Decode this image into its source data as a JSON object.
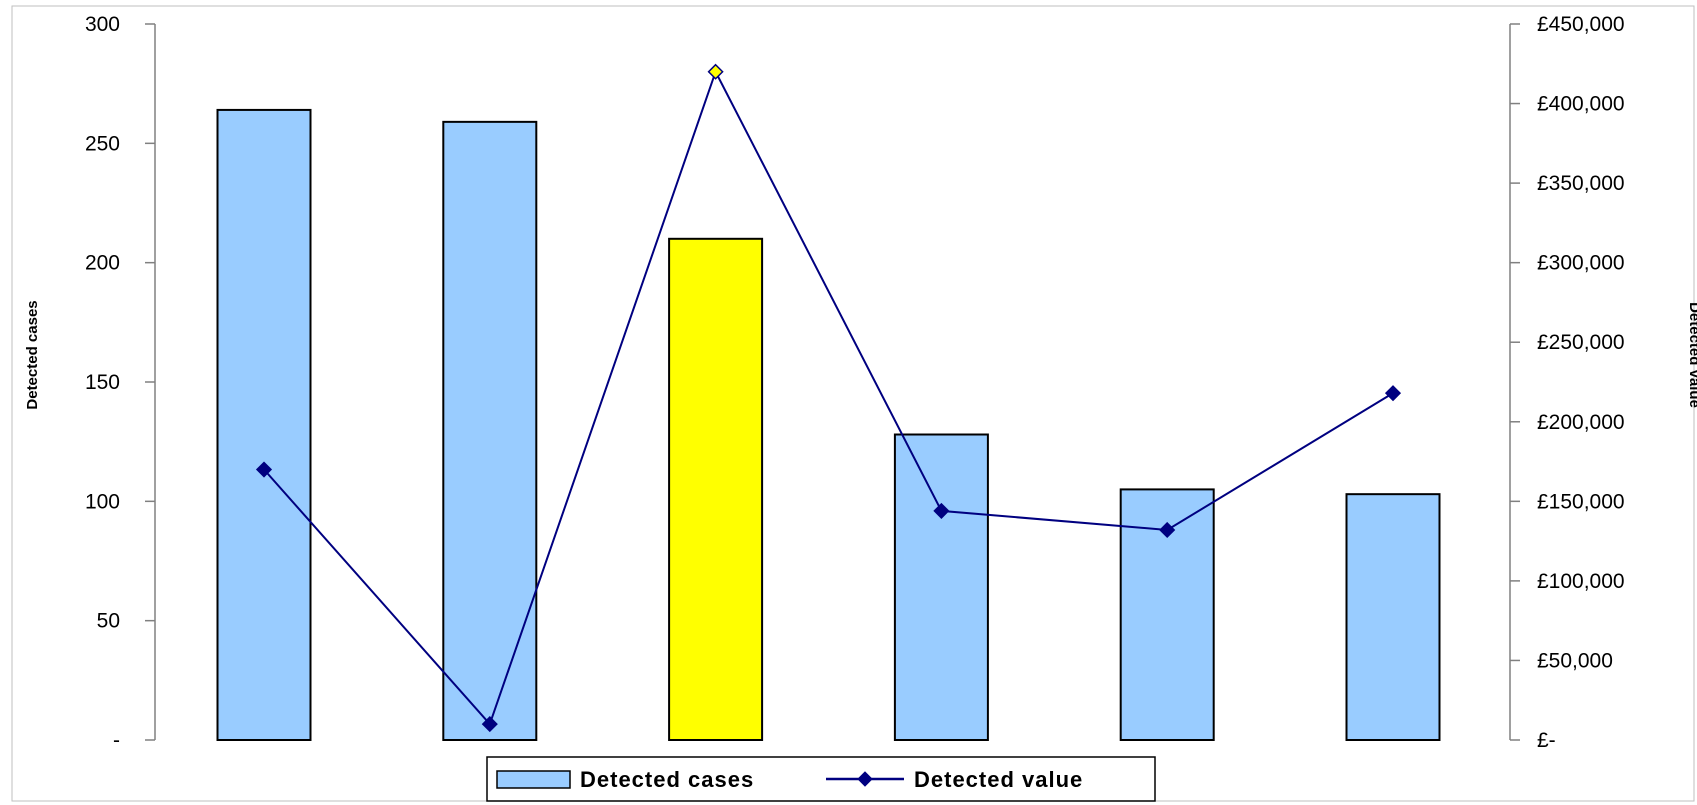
{
  "chart_data": {
    "type": "bar",
    "categories": [
      "",
      "",
      "",
      "",
      "",
      ""
    ],
    "series": [
      {
        "name": "Detected cases",
        "kind": "bar",
        "axis": "left",
        "values": [
          264,
          259,
          210,
          128,
          105,
          103
        ],
        "color": "#99ccff",
        "highlight_index": 2,
        "highlight_color": "#ffff00"
      },
      {
        "name": "Detected value",
        "kind": "line",
        "axis": "right",
        "values": [
          170000,
          10000,
          420000,
          144000,
          132000,
          218000
        ],
        "color": "#000080",
        "marker": "diamond",
        "highlight_index": 2,
        "highlight_color": "#ffff00"
      }
    ],
    "y_left": {
      "label": "Detected cases",
      "ylim": [
        0,
        300
      ],
      "ticks": [
        0,
        50,
        100,
        150,
        200,
        250,
        300
      ],
      "tick_labels": [
        "-",
        "50",
        "100",
        "150",
        "200",
        "250",
        "300"
      ]
    },
    "y_right": {
      "label": "Detected value",
      "ylim": [
        0,
        450000
      ],
      "ticks": [
        0,
        50000,
        100000,
        150000,
        200000,
        250000,
        300000,
        350000,
        400000,
        450000
      ],
      "tick_labels": [
        "£-",
        "£50,000",
        "£100,000",
        "£150,000",
        "£200,000",
        "£250,000",
        "£300,000",
        "£350,000",
        "£400,000",
        "£450,000"
      ]
    },
    "grid": false,
    "legend_position": "bottom"
  },
  "legend": {
    "bar_label": "Detected cases",
    "line_label": "Detected value"
  },
  "colors": {
    "bar_fill": "#99ccff",
    "bar_highlight": "#ffff00",
    "line": "#000080",
    "axis": "#808080"
  }
}
